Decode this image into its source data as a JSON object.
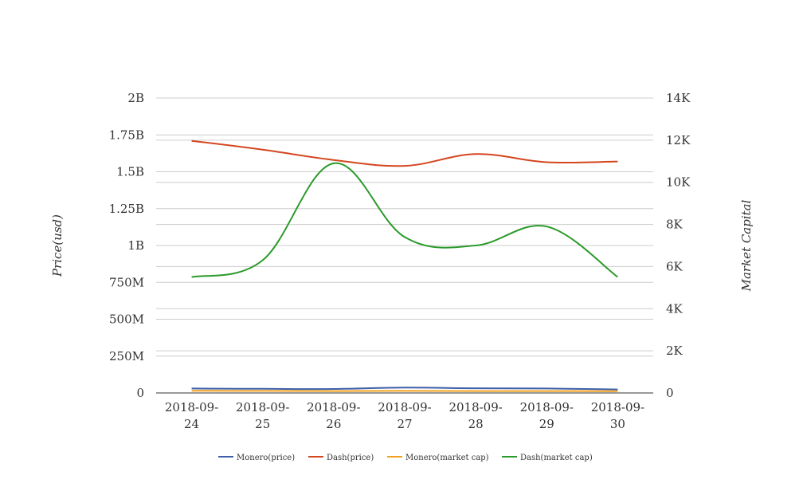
{
  "chart_data": {
    "type": "line",
    "categories": [
      "2018-09-24",
      "2018-09-25",
      "2018-09-26",
      "2018-09-27",
      "2018-09-28",
      "2018-09-29",
      "2018-09-30"
    ],
    "category_lines": [
      [
        "2018-09-",
        "24"
      ],
      [
        "2018-09-",
        "25"
      ],
      [
        "2018-09-",
        "26"
      ],
      [
        "2018-09-",
        "27"
      ],
      [
        "2018-09-",
        "28"
      ],
      [
        "2018-09-",
        "29"
      ],
      [
        "2018-09-",
        "30"
      ]
    ],
    "y_left": {
      "label": "Price(usd)",
      "range": [
        0,
        2000000000
      ],
      "ticks": [
        0,
        250000000,
        500000000,
        750000000,
        1000000000,
        1250000000,
        1500000000,
        1750000000,
        2000000000
      ],
      "tick_labels": [
        "0",
        "250M",
        "500M",
        "750M",
        "1B",
        "1.25B",
        "1.5B",
        "1.75B",
        "2B"
      ]
    },
    "y_right": {
      "label": "Market Capital",
      "range": [
        0,
        14000
      ],
      "ticks": [
        0,
        2000,
        4000,
        6000,
        8000,
        10000,
        12000,
        14000
      ],
      "tick_labels": [
        "0",
        "2K",
        "4K",
        "6K",
        "8K",
        "10K",
        "12K",
        "14K"
      ]
    },
    "series": [
      {
        "name": "Monero(price)",
        "axis": "left",
        "color": "#3c5fa8",
        "values": [
          30000000,
          28000000,
          27000000,
          36000000,
          32000000,
          30000000,
          24000000
        ]
      },
      {
        "name": "Dash(price)",
        "axis": "left",
        "color": "#d4461f",
        "values": [
          1710000000,
          1650000000,
          1580000000,
          1540000000,
          1620000000,
          1565000000,
          1570000000
        ]
      },
      {
        "name": "Monero(market cap)",
        "axis": "left",
        "color": "#f2a01e",
        "values": [
          15000000,
          14000000,
          13000000,
          14000000,
          13000000,
          13000000,
          12000000
        ]
      },
      {
        "name": "Dash(market cap)",
        "axis": "right",
        "color": "#2a9a2a",
        "values": [
          5500,
          6300,
          10900,
          7400,
          7000,
          7900,
          5500
        ]
      }
    ],
    "grid": true,
    "legend_position": "bottom"
  }
}
